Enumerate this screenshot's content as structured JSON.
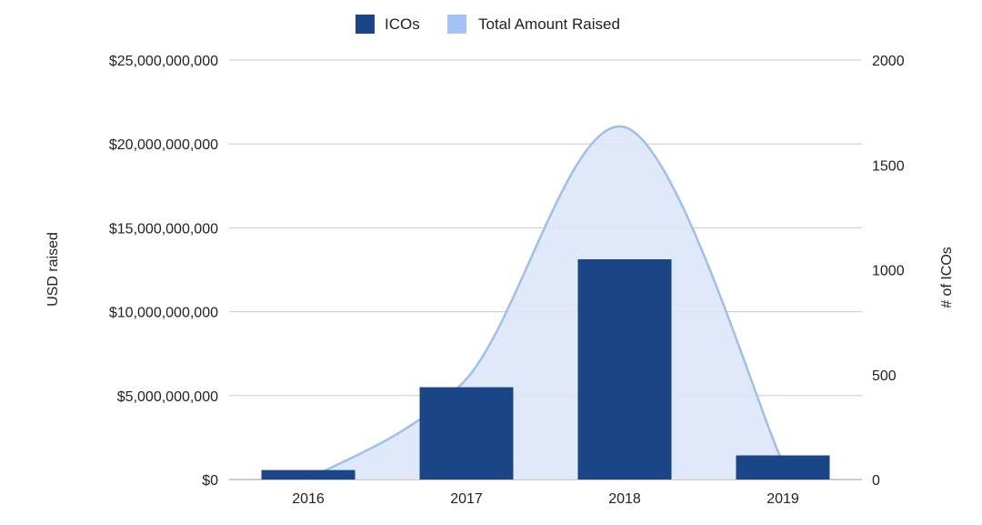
{
  "chart_data": {
    "type": "bar",
    "categories": [
      "2016",
      "2017",
      "2018",
      "2019"
    ],
    "series": [
      {
        "name": "ICOs",
        "type": "bar",
        "axis": "right",
        "values": [
          45,
          440,
          1050,
          115
        ]
      },
      {
        "name": "Total Amount Raised",
        "type": "area",
        "axis": "left",
        "values": [
          0,
          6000000000,
          21000000000,
          1000000000
        ]
      }
    ],
    "ylabel_left": "USD raised",
    "ylabel_right": "# of ICOs",
    "ylim_left": [
      0,
      25000000000
    ],
    "ylim_right": [
      0,
      2000
    ],
    "yticks_left": [
      "$0",
      "$5,000,000,000",
      "$10,000,000,000",
      "$15,000,000,000",
      "$20,000,000,000",
      "$25,000,000,000"
    ],
    "yticks_right": [
      "0",
      "500",
      "1000",
      "1500",
      "2000"
    ],
    "legend_position": "top-center",
    "grid": true,
    "colors": {
      "bar": "#1c4587",
      "area_fill": "#d9e5f8",
      "area_line": "#9fbfe6",
      "legend_area": "#a4c2f4",
      "grid": "#cccccc"
    }
  }
}
